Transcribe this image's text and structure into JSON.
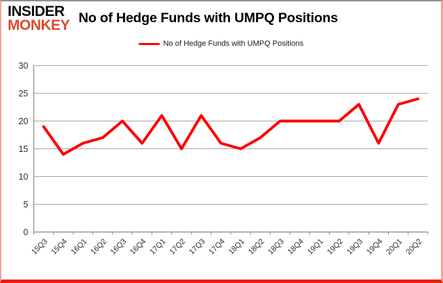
{
  "header": {
    "logo_line1": "INSIDER",
    "logo_line2": "MONKEY",
    "title": "No of Hedge Funds with UMPQ Positions"
  },
  "legend": {
    "label": "No of Hedge Funds with UMPQ Positions"
  },
  "colors": {
    "series": "#ff0000",
    "logo_accent": "#dd4a2c",
    "gridline": "#a6a6a6",
    "axis": "#898989",
    "tick_text": "#2e2e2e",
    "legend_text": "#1a1a1a"
  },
  "chart_data": {
    "type": "line",
    "title": "No of Hedge Funds with UMPQ Positions",
    "categories": [
      "15Q3",
      "15Q4",
      "16Q1",
      "16Q2",
      "16Q3",
      "16Q4",
      "17Q1",
      "17Q2",
      "17Q3",
      "17Q4",
      "18Q1",
      "18Q2",
      "18Q3",
      "18Q4",
      "19Q1",
      "19Q2",
      "19Q3",
      "19Q4",
      "20Q1",
      "20Q2"
    ],
    "series": [
      {
        "name": "No of Hedge Funds with UMPQ Positions",
        "values": [
          19,
          14,
          16,
          17,
          20,
          16,
          21,
          15,
          21,
          16,
          15,
          17,
          20,
          20,
          20,
          20,
          23,
          16,
          23,
          24
        ]
      }
    ],
    "xlabel": "",
    "ylabel": "",
    "ylim": [
      0,
      30
    ],
    "ytick_interval": 5,
    "grid": true,
    "legend_position": "top-center",
    "x_label_rotation": -45
  }
}
